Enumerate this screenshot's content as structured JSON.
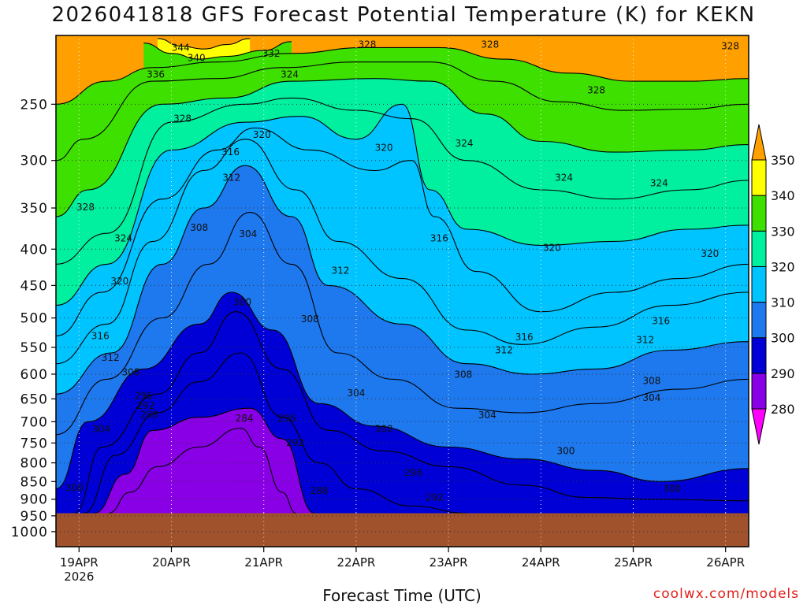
{
  "title": "2026041818 GFS Forecast Potential Temperature (K) for KEKN",
  "credit": "coolwx.com/models",
  "chart_data": {
    "type": "heatmap",
    "title": "2026041818 GFS Forecast Potential Temperature (K) for KEKN",
    "xlabel": "Forecast Time (UTC)",
    "ylabel": "",
    "xlim": [
      -0.25,
      7.25
    ],
    "x_ticks": [
      {
        "x": 0,
        "label": "19APR",
        "sublabel": "2026"
      },
      {
        "x": 1,
        "label": "20APR"
      },
      {
        "x": 2,
        "label": "21APR"
      },
      {
        "x": 3,
        "label": "22APR"
      },
      {
        "x": 4,
        "label": "23APR"
      },
      {
        "x": 5,
        "label": "24APR"
      },
      {
        "x": 6,
        "label": "25APR"
      },
      {
        "x": 7,
        "label": "26APR"
      }
    ],
    "y_scale": "log",
    "y_reversed": true,
    "ylim": [
      1050,
      200
    ],
    "y_ticks": [
      250,
      300,
      350,
      400,
      450,
      500,
      550,
      600,
      650,
      700,
      750,
      800,
      850,
      900,
      950,
      1000
    ],
    "grid": true,
    "surface_pressure": 942,
    "colorbar": {
      "levels": [
        280,
        290,
        300,
        310,
        320,
        330,
        340,
        350
      ],
      "colors": [
        "#ff00ff",
        "#8a00e6",
        "#0000d6",
        "#1e78ee",
        "#00c4ff",
        "#00f0a0",
        "#3ee000",
        "#ffff00",
        "#ffa000"
      ]
    },
    "contour_interval": 4,
    "isentropes": [
      {
        "value": 284,
        "points": [
          [
            0.32,
            942
          ],
          [
            0.55,
            880
          ],
          [
            0.85,
            810
          ],
          [
            1.3,
            760
          ],
          [
            1.75,
            715
          ],
          [
            1.95,
            760
          ],
          [
            2.2,
            880
          ],
          [
            2.35,
            942
          ]
        ]
      },
      {
        "value": 288,
        "points": [
          [
            0.16,
            942
          ],
          [
            0.5,
            830
          ],
          [
            0.8,
            720
          ],
          [
            1.3,
            690
          ],
          [
            1.85,
            670
          ],
          [
            2.2,
            740
          ],
          [
            2.55,
            942
          ]
        ]
      },
      {
        "value": 292,
        "points": [
          [
            0.05,
            942
          ],
          [
            0.4,
            780
          ],
          [
            0.85,
            680
          ],
          [
            1.3,
            615
          ],
          [
            1.75,
            560
          ],
          [
            2.2,
            690
          ],
          [
            2.6,
            800
          ],
          [
            3.0,
            870
          ],
          [
            3.6,
            920
          ],
          [
            4.2,
            942
          ]
        ]
      },
      {
        "value": 296,
        "points": [
          [
            -0.05,
            942
          ],
          [
            0.25,
            760
          ],
          [
            0.85,
            640
          ],
          [
            1.3,
            560
          ],
          [
            1.7,
            490
          ],
          [
            2.2,
            590
          ],
          [
            2.7,
            720
          ],
          [
            3.3,
            770
          ],
          [
            4.0,
            810
          ],
          [
            4.8,
            860
          ],
          [
            5.5,
            895
          ],
          [
            6.2,
            900
          ],
          [
            7.25,
            905
          ]
        ]
      },
      {
        "value": 300,
        "points": [
          [
            -0.25,
            870
          ],
          [
            0.1,
            700
          ],
          [
            0.7,
            590
          ],
          [
            1.3,
            510
          ],
          [
            1.65,
            460
          ],
          [
            2.1,
            520
          ],
          [
            2.6,
            660
          ],
          [
            3.2,
            710
          ],
          [
            4.0,
            760
          ],
          [
            4.8,
            790
          ],
          [
            5.6,
            820
          ],
          [
            6.3,
            850
          ],
          [
            7.25,
            815
          ]
        ]
      },
      {
        "value": 304,
        "points": [
          [
            -0.25,
            730
          ],
          [
            0.3,
            610
          ],
          [
            0.9,
            500
          ],
          [
            1.4,
            420
          ],
          [
            1.85,
            355
          ],
          [
            2.3,
            420
          ],
          [
            2.8,
            560
          ],
          [
            3.4,
            610
          ],
          [
            4.1,
            670
          ],
          [
            4.8,
            680
          ],
          [
            5.6,
            660
          ],
          [
            6.5,
            630
          ],
          [
            7.25,
            610
          ]
        ]
      },
      {
        "value": 308,
        "points": [
          [
            -0.25,
            640
          ],
          [
            0.35,
            560
          ],
          [
            0.9,
            420
          ],
          [
            1.35,
            350
          ],
          [
            1.8,
            305
          ],
          [
            2.3,
            360
          ],
          [
            2.7,
            450
          ],
          [
            3.5,
            510
          ],
          [
            4.2,
            580
          ],
          [
            4.9,
            600
          ],
          [
            5.6,
            590
          ],
          [
            6.4,
            555
          ],
          [
            7.25,
            540
          ]
        ]
      },
      {
        "value": 312,
        "points": [
          [
            -0.25,
            580
          ],
          [
            0.3,
            510
          ],
          [
            0.8,
            390
          ],
          [
            1.35,
            310
          ],
          [
            1.8,
            280
          ],
          [
            2.35,
            330
          ],
          [
            2.8,
            390
          ],
          [
            3.5,
            440
          ],
          [
            4.2,
            520
          ],
          [
            4.8,
            545
          ],
          [
            5.6,
            515
          ],
          [
            6.4,
            480
          ],
          [
            7.25,
            460
          ]
        ]
      },
      {
        "value": 316,
        "points": [
          [
            -0.25,
            530
          ],
          [
            0.25,
            460
          ],
          [
            0.9,
            340
          ],
          [
            1.5,
            290
          ],
          [
            1.9,
            270
          ],
          [
            2.5,
            290
          ],
          [
            3.2,
            310
          ],
          [
            3.6,
            300
          ],
          [
            3.85,
            360
          ],
          [
            4.3,
            430
          ],
          [
            5.0,
            490
          ],
          [
            5.8,
            460
          ],
          [
            6.5,
            440
          ],
          [
            7.25,
            420
          ]
        ]
      },
      {
        "value": 320,
        "points": [
          [
            -0.25,
            480
          ],
          [
            0.3,
            420
          ],
          [
            1.0,
            290
          ],
          [
            1.8,
            265
          ],
          [
            2.4,
            260
          ],
          [
            3.0,
            280
          ],
          [
            3.5,
            250
          ],
          [
            3.8,
            330
          ],
          [
            4.2,
            375
          ],
          [
            5.0,
            395
          ],
          [
            5.8,
            390
          ],
          [
            6.6,
            375
          ],
          [
            7.25,
            370
          ]
        ]
      },
      {
        "value": 324,
        "points": [
          [
            -0.25,
            420
          ],
          [
            0.3,
            380
          ],
          [
            1.0,
            265
          ],
          [
            1.8,
            250
          ],
          [
            2.3,
            245
          ],
          [
            3.0,
            255
          ],
          [
            3.6,
            262
          ],
          [
            4.2,
            300
          ],
          [
            5.0,
            330
          ],
          [
            5.8,
            340
          ],
          [
            6.6,
            330
          ],
          [
            7.25,
            320
          ]
        ]
      },
      {
        "value": 328,
        "points": [
          [
            -0.25,
            360
          ],
          [
            0.1,
            330
          ],
          [
            0.9,
            250
          ],
          [
            1.6,
            245
          ],
          [
            2.3,
            232
          ],
          [
            3.2,
            230
          ],
          [
            3.8,
            232
          ],
          [
            4.4,
            258
          ],
          [
            5.0,
            282
          ],
          [
            5.8,
            292
          ],
          [
            6.6,
            290
          ],
          [
            7.25,
            285
          ]
        ]
      },
      {
        "value": 332,
        "points": [
          [
            -0.25,
            300
          ],
          [
            0.05,
            280
          ],
          [
            0.8,
            232
          ],
          [
            1.5,
            230
          ],
          [
            2.2,
            222
          ],
          [
            3.0,
            218
          ],
          [
            3.8,
            218
          ],
          [
            4.5,
            232
          ],
          [
            5.2,
            248
          ],
          [
            5.9,
            255
          ],
          [
            6.6,
            254
          ],
          [
            7.25,
            250
          ]
        ]
      },
      {
        "value": 336,
        "points": [
          [
            -0.25,
            250
          ],
          [
            0.3,
            232
          ],
          [
            0.8,
            222
          ],
          [
            1.5,
            218
          ],
          [
            2.3,
            212
          ],
          [
            3.1,
            208
          ],
          [
            3.9,
            208
          ],
          [
            4.6,
            216
          ],
          [
            5.3,
            226
          ],
          [
            6.0,
            232
          ],
          [
            6.6,
            232
          ],
          [
            7.25,
            230
          ]
        ]
      },
      {
        "value": 340,
        "points": [
          [
            0.7,
            205
          ],
          [
            1.0,
            212
          ],
          [
            1.3,
            216
          ],
          [
            1.6,
            214
          ],
          [
            2.0,
            210
          ],
          [
            2.3,
            204
          ]
        ]
      },
      {
        "value": 344,
        "points": [
          [
            0.85,
            202
          ],
          [
            1.1,
            207
          ],
          [
            1.35,
            209
          ],
          [
            1.6,
            206
          ],
          [
            1.85,
            202
          ]
        ]
      }
    ],
    "contour_labels": [
      {
        "value": 344,
        "x": 1.1,
        "p": 208
      },
      {
        "value": 340,
        "x": 1.27,
        "p": 215
      },
      {
        "value": 336,
        "x": 0.83,
        "p": 227
      },
      {
        "value": 332,
        "x": 2.08,
        "p": 212
      },
      {
        "value": 328,
        "x": 3.12,
        "p": 206
      },
      {
        "value": 328,
        "x": 4.45,
        "p": 206
      },
      {
        "value": 328,
        "x": 7.05,
        "p": 207
      },
      {
        "value": 324,
        "x": 2.28,
        "p": 227
      },
      {
        "value": 328,
        "x": 1.12,
        "p": 262
      },
      {
        "value": 328,
        "x": 5.6,
        "p": 239
      },
      {
        "value": 320,
        "x": 1.98,
        "p": 276
      },
      {
        "value": 320,
        "x": 3.3,
        "p": 288
      },
      {
        "value": 324,
        "x": 4.17,
        "p": 284
      },
      {
        "value": 316,
        "x": 1.64,
        "p": 292
      },
      {
        "value": 324,
        "x": 5.25,
        "p": 317
      },
      {
        "value": 324,
        "x": 6.28,
        "p": 323
      },
      {
        "value": 312,
        "x": 1.65,
        "p": 317
      },
      {
        "value": 328,
        "x": 0.07,
        "p": 349
      },
      {
        "value": 308,
        "x": 1.3,
        "p": 373
      },
      {
        "value": 304,
        "x": 1.83,
        "p": 381
      },
      {
        "value": 316,
        "x": 3.9,
        "p": 386
      },
      {
        "value": 324,
        "x": 0.48,
        "p": 386
      },
      {
        "value": 320,
        "x": 5.12,
        "p": 398
      },
      {
        "value": 320,
        "x": 6.83,
        "p": 406
      },
      {
        "value": 312,
        "x": 2.83,
        "p": 429
      },
      {
        "value": 320,
        "x": 0.44,
        "p": 444
      },
      {
        "value": 300,
        "x": 1.77,
        "p": 475
      },
      {
        "value": 308,
        "x": 2.5,
        "p": 502
      },
      {
        "value": 316,
        "x": 6.3,
        "p": 505
      },
      {
        "value": 316,
        "x": 0.23,
        "p": 530
      },
      {
        "value": 316,
        "x": 4.82,
        "p": 532
      },
      {
        "value": 312,
        "x": 6.13,
        "p": 537
      },
      {
        "value": 312,
        "x": 4.6,
        "p": 555
      },
      {
        "value": 312,
        "x": 0.34,
        "p": 569
      },
      {
        "value": 308,
        "x": 0.56,
        "p": 596
      },
      {
        "value": 308,
        "x": 4.16,
        "p": 601
      },
      {
        "value": 308,
        "x": 6.2,
        "p": 613
      },
      {
        "value": 304,
        "x": 3.0,
        "p": 638
      },
      {
        "value": 296,
        "x": 0.7,
        "p": 644
      },
      {
        "value": 292,
        "x": 0.72,
        "p": 665
      },
      {
        "value": 304,
        "x": 6.2,
        "p": 648
      },
      {
        "value": 304,
        "x": 4.42,
        "p": 685
      },
      {
        "value": 288,
        "x": 0.76,
        "p": 684
      },
      {
        "value": 284,
        "x": 1.79,
        "p": 692
      },
      {
        "value": 296,
        "x": 2.25,
        "p": 692
      },
      {
        "value": 304,
        "x": 0.24,
        "p": 717
      },
      {
        "value": 300,
        "x": 3.3,
        "p": 717
      },
      {
        "value": 292,
        "x": 2.34,
        "p": 749
      },
      {
        "value": 300,
        "x": 5.27,
        "p": 770
      },
      {
        "value": 296,
        "x": 3.62,
        "p": 826
      },
      {
        "value": 300,
        "x": -0.05,
        "p": 868
      },
      {
        "value": 288,
        "x": 2.6,
        "p": 876
      },
      {
        "value": 292,
        "x": 3.85,
        "p": 895
      },
      {
        "value": 300,
        "x": 6.42,
        "p": 870
      }
    ]
  }
}
